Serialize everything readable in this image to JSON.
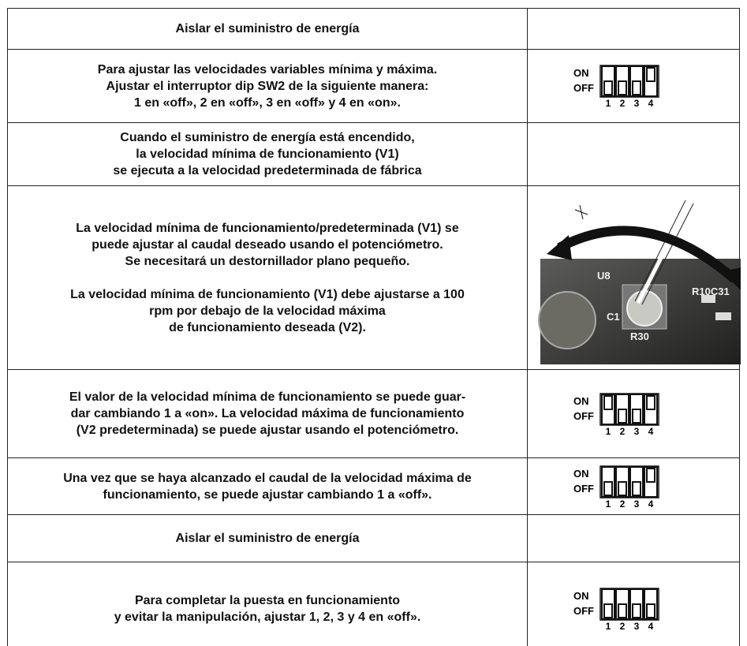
{
  "rows": [
    {
      "text": [
        "Aislar el suministro de energía"
      ]
    },
    {
      "text": [
        "Para ajustar las velocidades variables mínima y máxima.",
        "Ajustar el interruptor dip SW2 de la siguiente manera:",
        "1 en «off», 2 en «off», 3 en «off» y 4 en «on»."
      ],
      "switch": {
        "on": "ON",
        "off": "OFF",
        "numbers": [
          1,
          2,
          3,
          4
        ]
      }
    },
    {
      "text": [
        "Cuando el suministro de energía está encendido,",
        "la velocidad mínima de funcionamiento (V1)",
        "se ejecuta a la velocidad predeterminada de fábrica"
      ]
    },
    {
      "text": [
        "La velocidad mínima de funcionamiento/predeterminada (V1) se",
        "puede ajustar al caudal deseado usando el potenciómetro.",
        "Se necesitará un destornillador plano pequeño."
      ],
      "text2": [
        "La velocidad mínima de funcionamiento (V1) debe ajustarse a 100",
        "rpm por debajo de la velocidad máxima",
        "de funcionamiento deseada (V2)."
      ],
      "photo_labels": [
        "U8",
        "R30",
        "C1",
        "R10C31"
      ]
    },
    {
      "text": [
        "El valor de la velocidad mínima de funcionamiento se puede guar-",
        "dar cambiando 1 a «on».  La velocidad máxima de funcionamiento",
        "(V2 predeterminada) se puede ajustar usando el potenciómetro."
      ],
      "switch": {
        "on": "ON",
        "off": "OFF",
        "numbers": [
          1,
          2,
          3,
          4
        ]
      }
    },
    {
      "text": [
        "Una vez que se haya alcanzado el caudal de la velocidad máxima de",
        "funcionamiento, se puede ajustar cambiando 1 a «off»."
      ],
      "switch": {
        "on": "ON",
        "off": "OFF",
        "numbers": [
          1,
          2,
          3,
          4
        ]
      }
    },
    {
      "text": [
        "Aislar el suministro de energía"
      ]
    },
    {
      "text": [
        "Para completar la puesta en funcionamiento",
        "y evitar la manipulación, ajustar 1, 2, 3 y 4 en «off»."
      ],
      "switch": {
        "on": "ON",
        "off": "OFF",
        "numbers": [
          1,
          2,
          3,
          4
        ]
      }
    }
  ]
}
